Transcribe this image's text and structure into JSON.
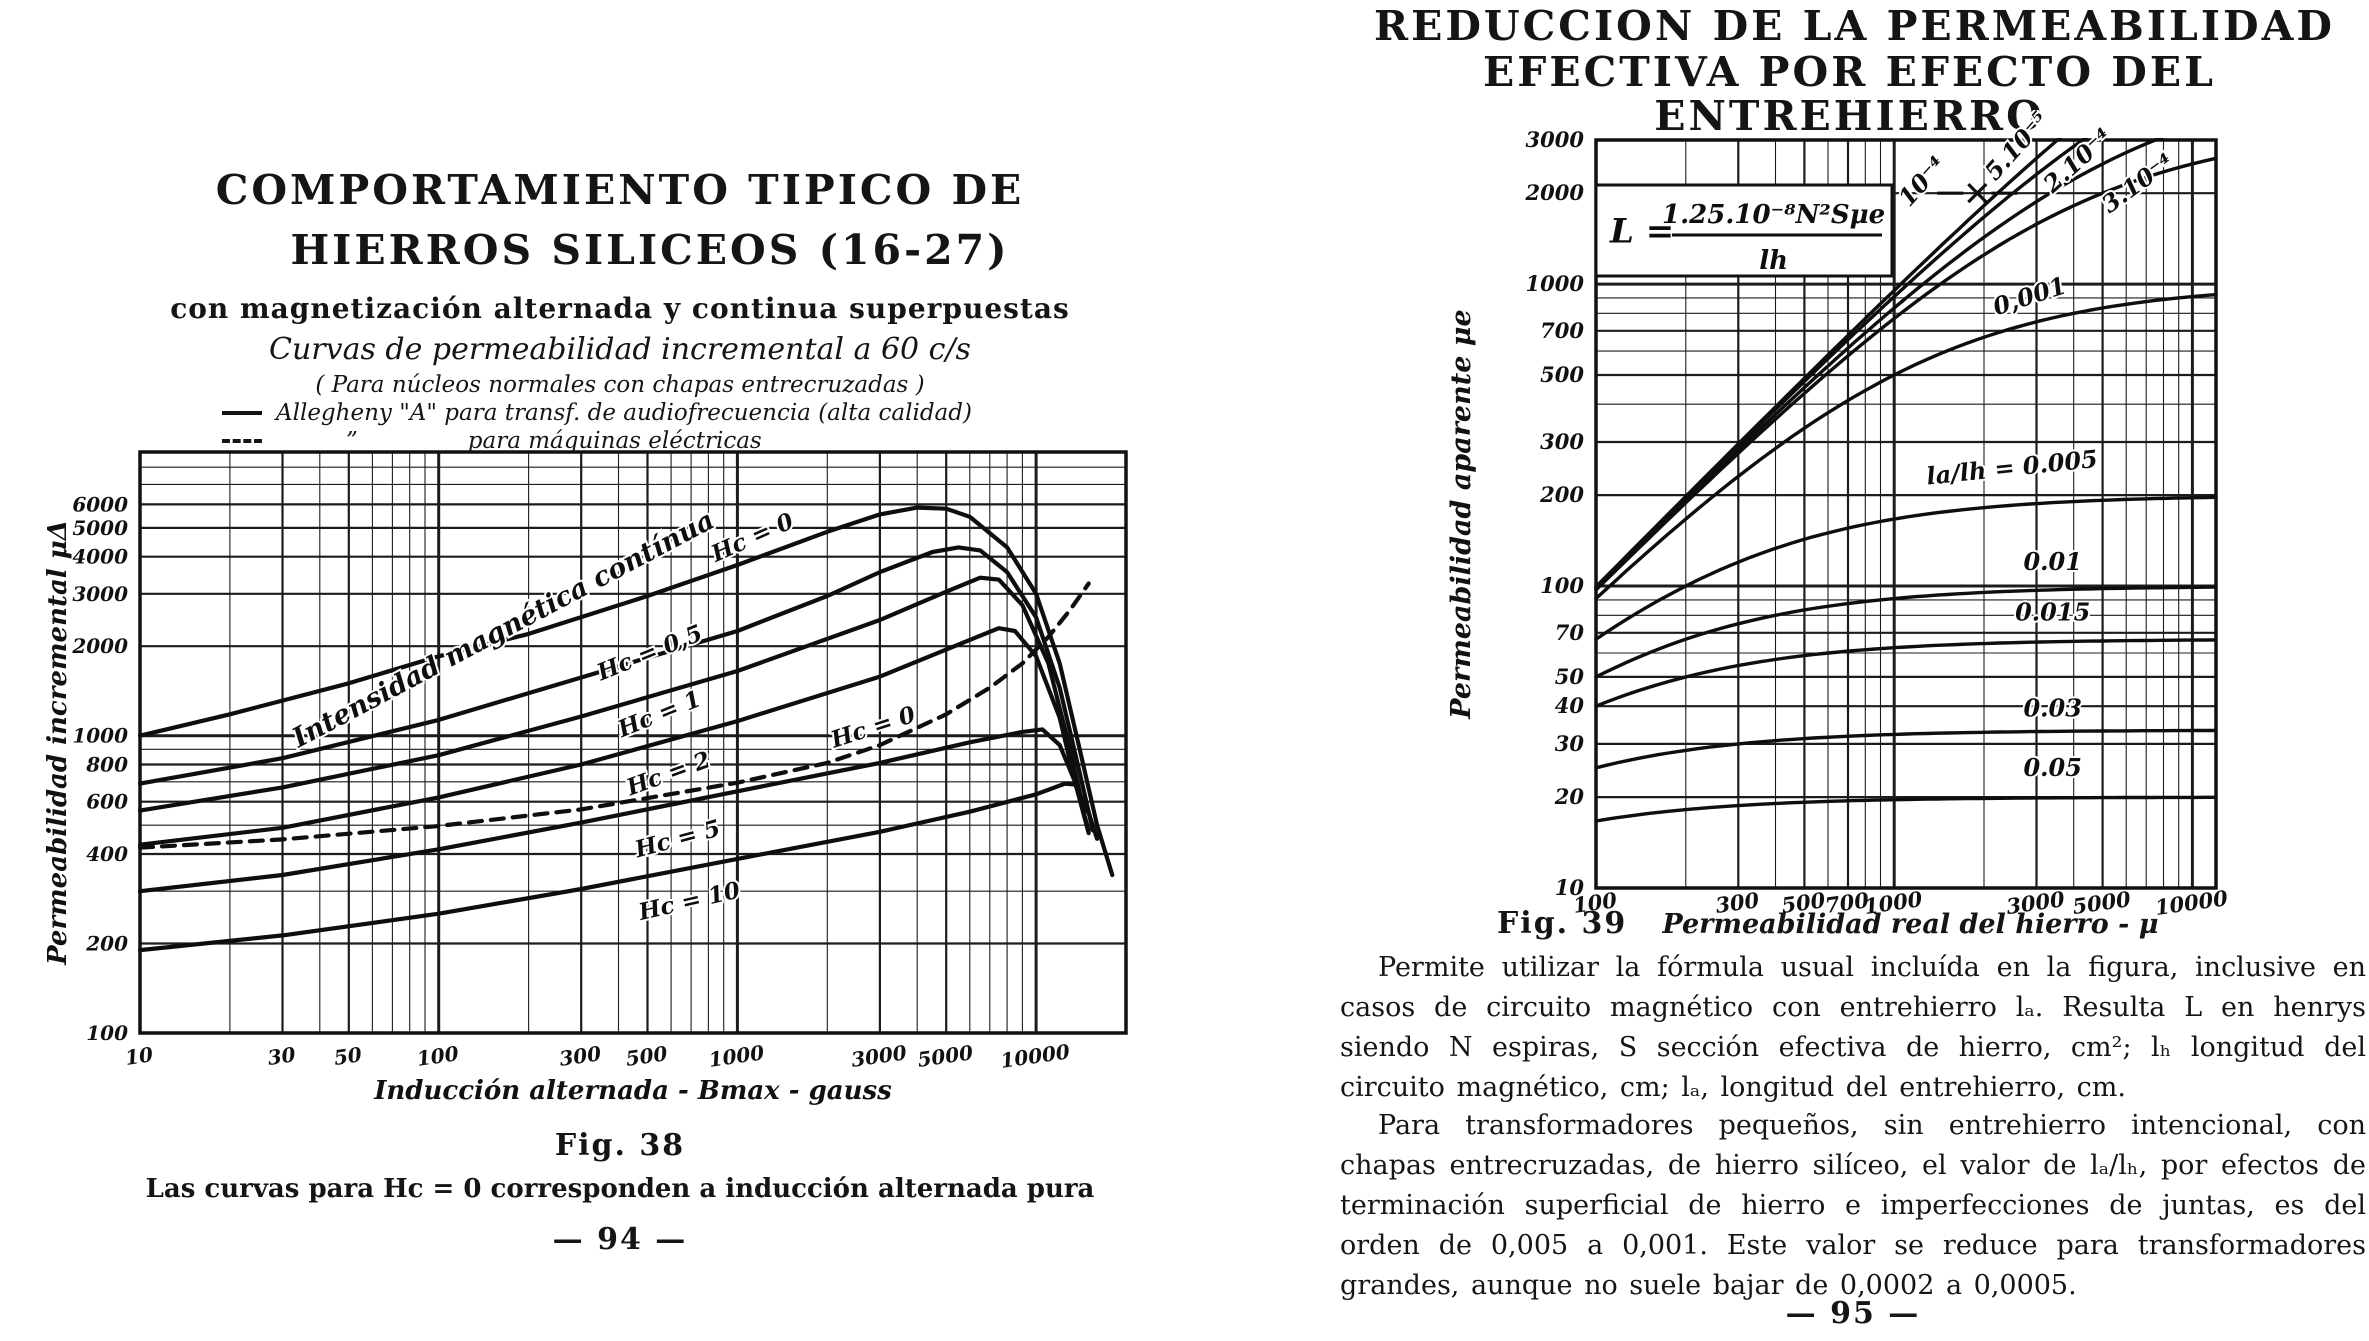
{
  "page": {
    "left": {
      "title1": "COMPORTAMIENTO TIPICO DE",
      "title2": "HIERROS SILICEOS (16-27)",
      "subtitle": "con magnetización alternada y continua superpuestas",
      "legend1": "Curvas de permeabilidad incremental a 60 c/s",
      "legend2": "( Para núcleos normales con chapas entrecruzadas )",
      "legend_solid": "Allegheny \"A\" para transf. de audiofrecuencia (alta calidad)",
      "legend_dashed_ditto": "”",
      "legend_dashed": "para máquinas eléctricas",
      "fig_label": "Fig. 38",
      "fig_caption": "Las curvas para Hc = 0 corresponden a inducción alternada pura",
      "page_number": "— 94 —"
    },
    "right": {
      "title1": "REDUCCION DE LA PERMEABILIDAD",
      "title2": "EFECTIVA POR EFECTO DEL ENTREHIERRO",
      "fig_label": "Fig. 39",
      "fig_caption": "Permeabilidad real del hierro - μ",
      "para1": "Permite utilizar la fórmula usual incluída en la figura, inclusive en casos de circuito magnético con entrehierro lₐ. Resulta L en henrys siendo N espiras, S sección efectiva de hierro, cm²; lₕ longitud del circuito magnético, cm; lₐ, longitud del entrehierro, cm.",
      "para2": "Para transformadores pequeños, sin entrehierro intencional, con chapas entrecruzadas, de hierro silíceo, el valor de lₐ/lₕ, por efectos de terminación superficial de hierro e imperfecciones de juntas, es del orden de 0,005 a 0,001. Este valor se reduce para transformadores grandes, aunque no suele bajar de 0,0002 a 0,0005.",
      "page_number": "— 95 —"
    }
  },
  "chart_data": [
    {
      "type": "line",
      "title": "Curvas de permeabilidad incremental a 60 c/s",
      "xlabel": "Inducción alternada - Bmax - gauss",
      "ylabel": "Permeabilidad incremental μΔ",
      "x_scale": "log",
      "y_scale": "log",
      "xlim": [
        10,
        20000
      ],
      "ylim": [
        100,
        9000
      ],
      "x_ticks": [
        10,
        30,
        50,
        100,
        300,
        500,
        1000,
        3000,
        5000,
        10000
      ],
      "y_ticks": [
        100,
        200,
        400,
        600,
        800,
        1000,
        2000,
        3000,
        4000,
        5000,
        6000
      ],
      "grid": true,
      "series": [
        {
          "name": "Hc = 0",
          "style": "solid",
          "points": [
            [
              10,
              1000
            ],
            [
              20,
              1180
            ],
            [
              50,
              1500
            ],
            [
              100,
              1850
            ],
            [
              200,
              2200
            ],
            [
              500,
              2950
            ],
            [
              1000,
              3750
            ],
            [
              2000,
              4850
            ],
            [
              3000,
              5550
            ],
            [
              4000,
              5850
            ],
            [
              5000,
              5800
            ],
            [
              6000,
              5450
            ],
            [
              8000,
              4300
            ],
            [
              10000,
              3000
            ],
            [
              12000,
              1750
            ],
            [
              14000,
              900
            ],
            [
              16000,
              500
            ],
            [
              18000,
              340
            ]
          ]
        },
        {
          "name": "Hc = 0,5",
          "style": "solid",
          "points": [
            [
              10,
              690
            ],
            [
              30,
              840
            ],
            [
              100,
              1130
            ],
            [
              300,
              1570
            ],
            [
              1000,
              2250
            ],
            [
              2000,
              2950
            ],
            [
              3000,
              3550
            ],
            [
              4500,
              4150
            ],
            [
              5500,
              4300
            ],
            [
              6500,
              4200
            ],
            [
              8000,
              3550
            ],
            [
              10000,
              2500
            ],
            [
              12000,
              1450
            ],
            [
              14000,
              750
            ],
            [
              15500,
              480
            ]
          ]
        },
        {
          "name": "Hc = 1",
          "style": "solid",
          "points": [
            [
              10,
              560
            ],
            [
              30,
              670
            ],
            [
              100,
              860
            ],
            [
              300,
              1160
            ],
            [
              1000,
              1650
            ],
            [
              3000,
              2450
            ],
            [
              5000,
              3050
            ],
            [
              6500,
              3400
            ],
            [
              7500,
              3350
            ],
            [
              9000,
              2750
            ],
            [
              11000,
              1750
            ],
            [
              13000,
              900
            ],
            [
              14500,
              550
            ]
          ]
        },
        {
          "name": "Hc = 2",
          "style": "solid",
          "points": [
            [
              10,
              430
            ],
            [
              30,
              490
            ],
            [
              100,
              620
            ],
            [
              300,
              800
            ],
            [
              1000,
              1120
            ],
            [
              3000,
              1580
            ],
            [
              6000,
              2100
            ],
            [
              7500,
              2300
            ],
            [
              8500,
              2250
            ],
            [
              10000,
              1850
            ],
            [
              12000,
              1150
            ],
            [
              13500,
              700
            ],
            [
              15000,
              470
            ]
          ]
        },
        {
          "name": "Hc = 5",
          "style": "solid",
          "points": [
            [
              10,
              300
            ],
            [
              30,
              340
            ],
            [
              100,
              415
            ],
            [
              300,
              510
            ],
            [
              1000,
              650
            ],
            [
              3000,
              810
            ],
            [
              6000,
              950
            ],
            [
              9000,
              1030
            ],
            [
              10500,
              1050
            ],
            [
              12000,
              930
            ],
            [
              13500,
              700
            ],
            [
              15000,
              480
            ]
          ]
        },
        {
          "name": "Hc = 10",
          "style": "solid",
          "points": [
            [
              10,
              190
            ],
            [
              30,
              213
            ],
            [
              100,
              252
            ],
            [
              300,
              305
            ],
            [
              1000,
              385
            ],
            [
              3000,
              475
            ],
            [
              6000,
              555
            ],
            [
              10000,
              635
            ],
            [
              12500,
              690
            ],
            [
              13500,
              685
            ],
            [
              15000,
              550
            ],
            [
              16000,
              450
            ]
          ]
        },
        {
          "name": "Hc = 0 (máquinas eléctricas)",
          "style": "dashed",
          "points": [
            [
              10,
              420
            ],
            [
              30,
              448
            ],
            [
              100,
              497
            ],
            [
              300,
              565
            ],
            [
              1000,
              695
            ],
            [
              2000,
              810
            ],
            [
              3000,
              930
            ],
            [
              5000,
              1180
            ],
            [
              7000,
              1450
            ],
            [
              9000,
              1750
            ],
            [
              11000,
              2150
            ],
            [
              13000,
              2650
            ],
            [
              15000,
              3250
            ]
          ]
        }
      ],
      "labels": [
        {
          "text": "Intensidad magnética contínua",
          "x": 170,
          "y": 2150,
          "rot": -28,
          "size": 27
        },
        {
          "text": "Hc = 0",
          "x": 1150,
          "y": 4400,
          "rot": -24,
          "size": 23
        },
        {
          "text": "Hc = 0,5",
          "x": 520,
          "y": 1800,
          "rot": -22,
          "size": 23
        },
        {
          "text": "Hc = 1",
          "x": 560,
          "y": 1120,
          "rot": -22,
          "size": 23
        },
        {
          "text": "Hc = 2",
          "x": 600,
          "y": 705,
          "rot": -20,
          "size": 23
        },
        {
          "text": "Hc = 0",
          "x": 2900,
          "y": 1010,
          "rot": -18,
          "size": 23
        },
        {
          "text": "Hc = 5",
          "x": 640,
          "y": 425,
          "rot": -15,
          "size": 23
        },
        {
          "text": "Hc = 10",
          "x": 700,
          "y": 262,
          "rot": -13,
          "size": 23
        }
      ]
    },
    {
      "type": "line",
      "title": "Reducción de la permeabilidad efectiva por efecto del entrehierro",
      "xlabel": "Permeabilidad real del hierro - μ",
      "ylabel": "Permeabilidad aparente μe",
      "x_scale": "log",
      "y_scale": "log",
      "xlim": [
        100,
        12000
      ],
      "ylim": [
        10,
        3000
      ],
      "x_ticks": [
        100,
        300,
        500,
        700,
        1000,
        3000,
        5000,
        10000
      ],
      "y_ticks": [
        10,
        20,
        30,
        40,
        50,
        70,
        100,
        200,
        300,
        500,
        700,
        1000,
        2000,
        3000
      ],
      "grid": true,
      "gap_ratios": [
        5e-05,
        0.0001,
        0.0002,
        0.0003,
        0.001,
        0.005,
        0.01,
        0.015,
        0.03,
        0.05
      ],
      "formula": {
        "lhs": "L =",
        "numerator": "1.25.10⁻⁸N²Sμe",
        "denominator": "lh"
      },
      "marker": {
        "shape": "x",
        "x": 1900,
        "y": 2000
      },
      "labels": [
        {
          "text": "10⁻⁴",
          "x": 1300,
          "y": 2100,
          "rot": -48,
          "size": 24
        },
        {
          "text": "5.10⁻⁵",
          "x": 2700,
          "y": 2750,
          "rot": -48,
          "size": 24
        },
        {
          "text": "2.10⁻⁴",
          "x": 4300,
          "y": 2450,
          "rot": -42,
          "size": 24
        },
        {
          "text": "3.10⁻⁴",
          "x": 6800,
          "y": 2050,
          "rot": -36,
          "size": 24
        },
        {
          "text": "0,001",
          "x": 2900,
          "y": 860,
          "rot": -18,
          "size": 24
        },
        {
          "text": "la/lh = 0.005",
          "x": 2500,
          "y": 232,
          "rot": -6,
          "size": 24
        },
        {
          "text": "0.01",
          "x": 3400,
          "y": 113,
          "rot": 0,
          "size": 24
        },
        {
          "text": "0.015",
          "x": 3400,
          "y": 77,
          "rot": 0,
          "size": 24
        },
        {
          "text": "0.03",
          "x": 3400,
          "y": 37,
          "rot": 0,
          "size": 24
        },
        {
          "text": "0.05",
          "x": 3400,
          "y": 23.5,
          "rot": 0,
          "size": 24
        }
      ]
    }
  ]
}
